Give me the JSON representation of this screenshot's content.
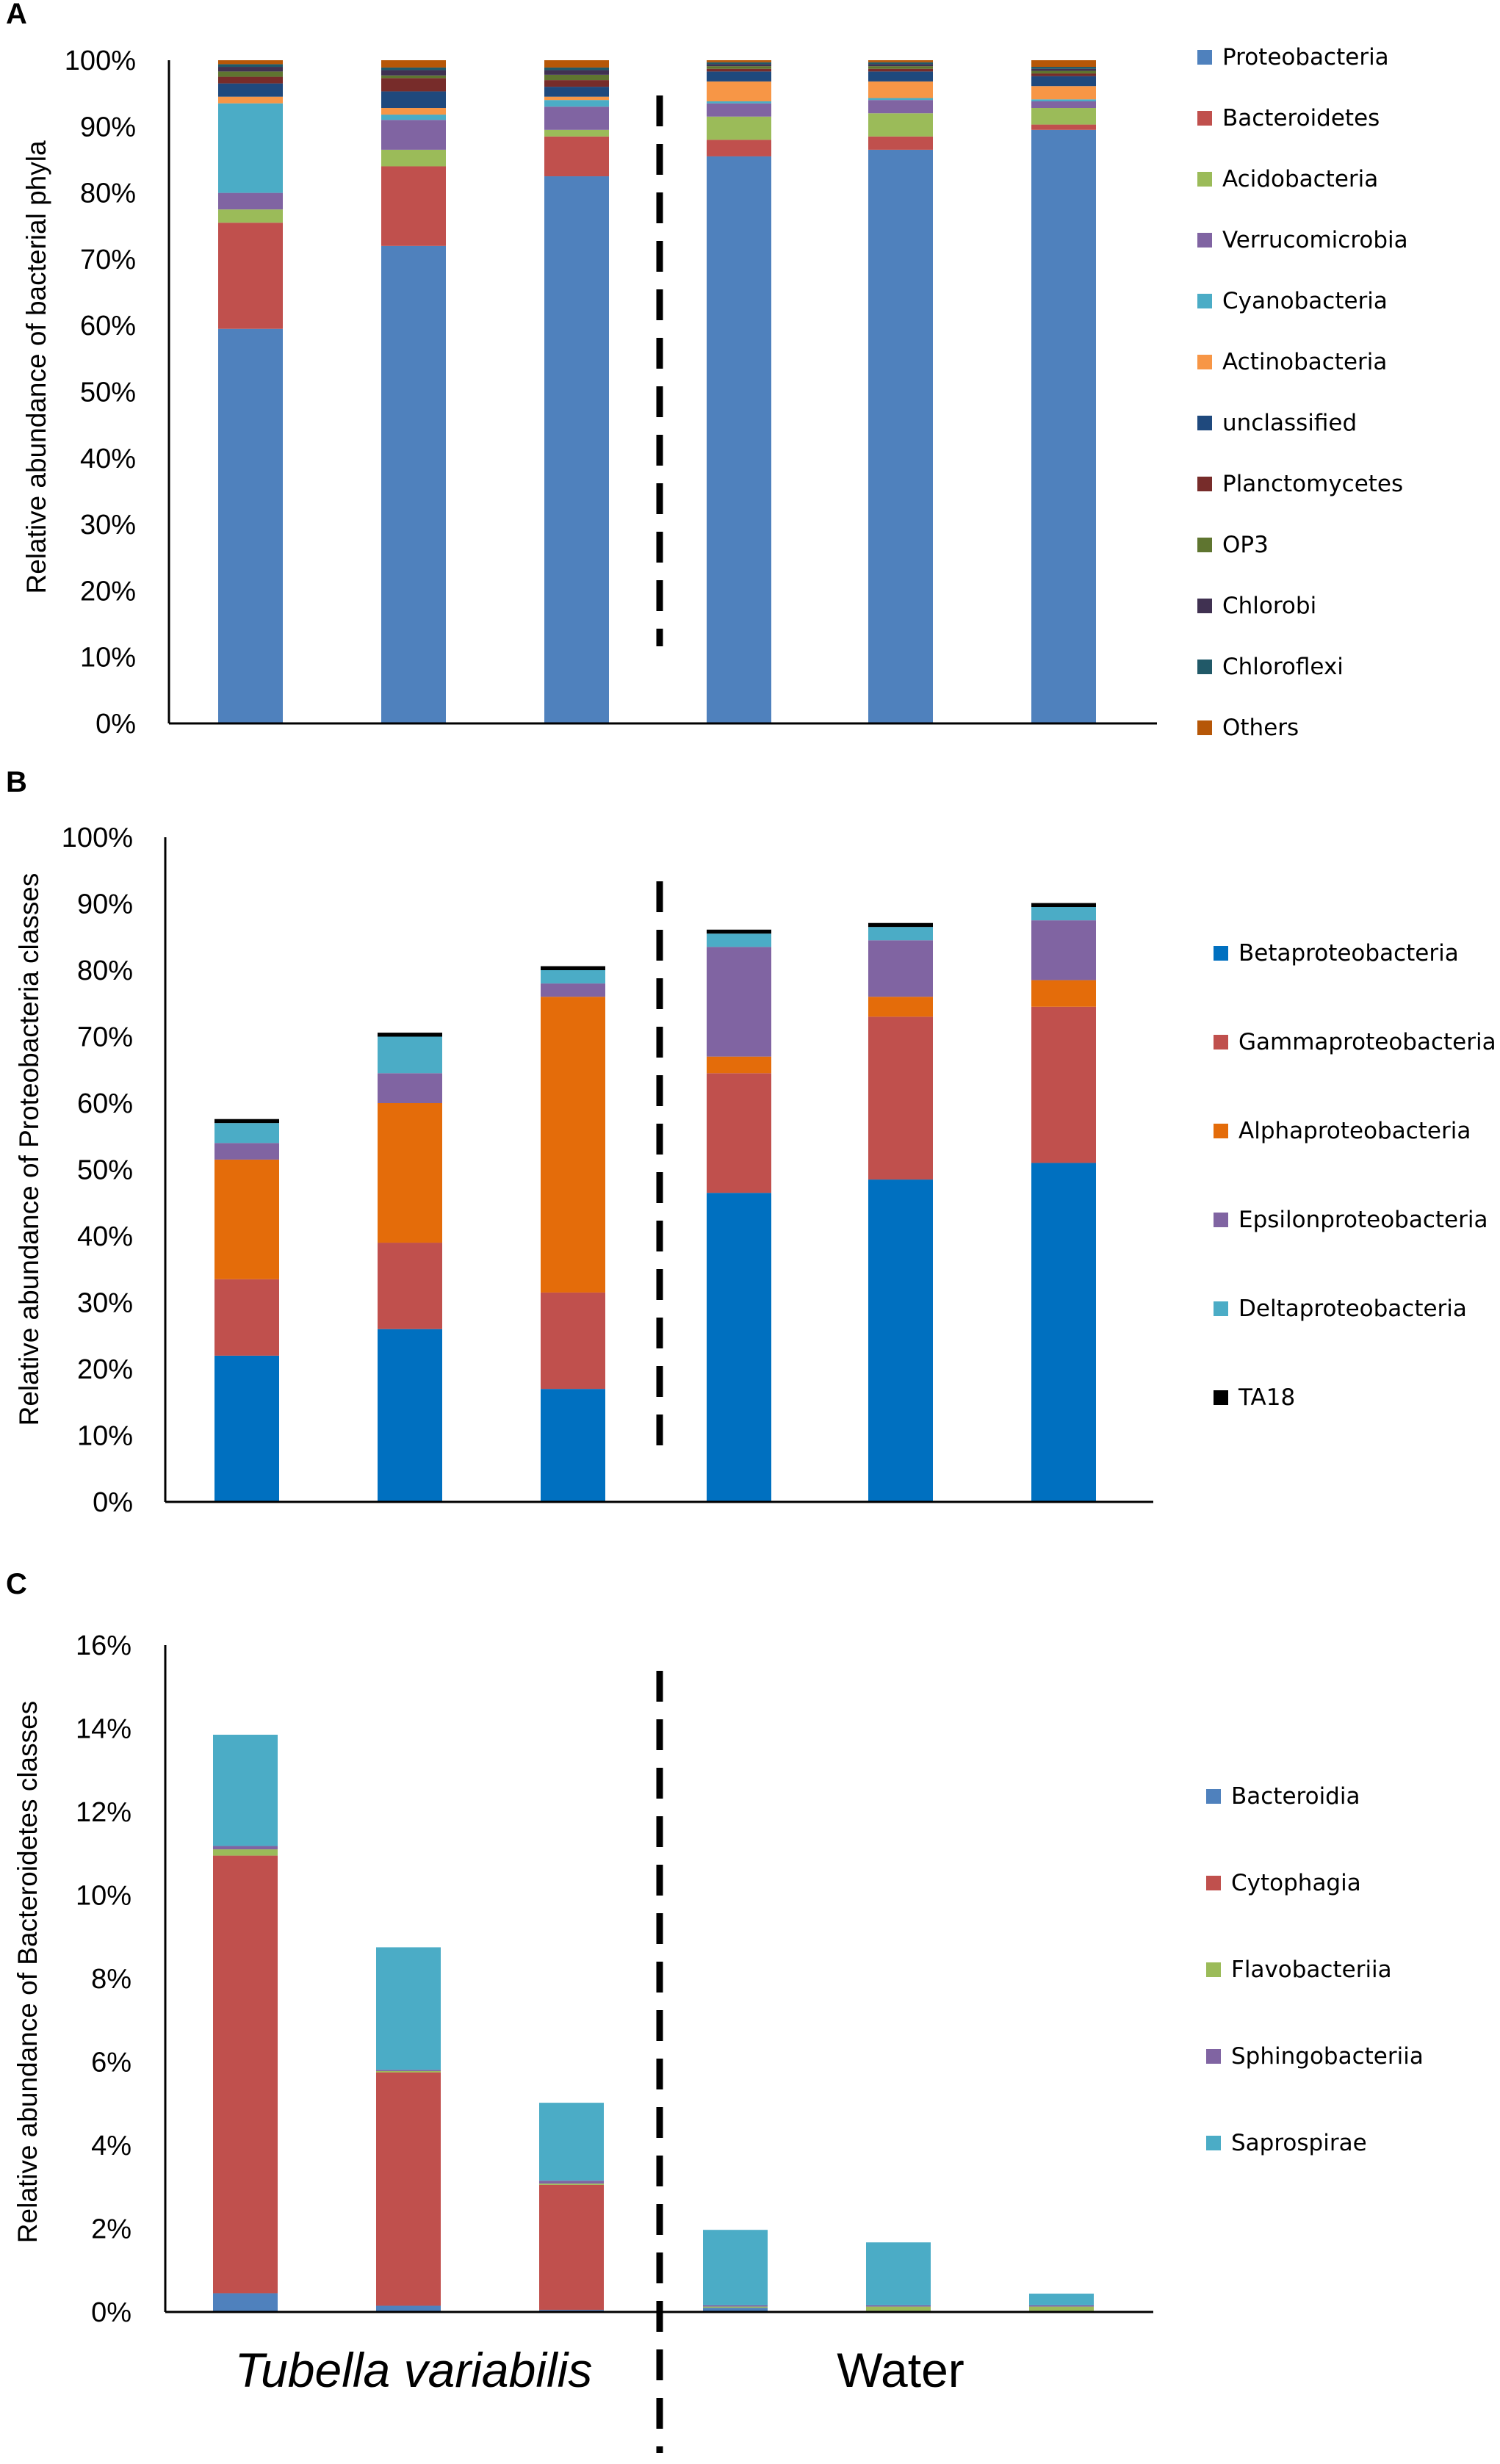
{
  "chart_data": [
    {
      "panel": "A",
      "type": "bar",
      "stacked": true,
      "title": "",
      "xlabel": "",
      "ylabel": "Relative abundance of bacterial phyla",
      "ylim": [
        0,
        1
      ],
      "yticks": [
        "0%",
        "10%",
        "20%",
        "30%",
        "40%",
        "50%",
        "60%",
        "70%",
        "80%",
        "90%",
        "100%"
      ],
      "legend_position": "right",
      "series": [
        {
          "name": "Proteobacteria",
          "color": "#4F81BD",
          "values": [
            0.595,
            0.72,
            0.825,
            0.855,
            0.865,
            0.895
          ]
        },
        {
          "name": "Bacteroidetes",
          "color": "#C0504D",
          "values": [
            0.16,
            0.12,
            0.06,
            0.025,
            0.02,
            0.008
          ]
        },
        {
          "name": "Acidobacteria",
          "color": "#9BBB59",
          "values": [
            0.02,
            0.025,
            0.01,
            0.035,
            0.035,
            0.025
          ]
        },
        {
          "name": "Verrucomicrobia",
          "color": "#8064A2",
          "values": [
            0.025,
            0.045,
            0.035,
            0.02,
            0.02,
            0.01
          ]
        },
        {
          "name": "Cyanobacteria",
          "color": "#4BACC6",
          "values": [
            0.135,
            0.008,
            0.01,
            0.003,
            0.003,
            0.003
          ]
        },
        {
          "name": "Actinobacteria",
          "color": "#F79646",
          "values": [
            0.01,
            0.01,
            0.005,
            0.03,
            0.025,
            0.02
          ]
        },
        {
          "name": "unclassified",
          "color": "#1F497D",
          "values": [
            0.02,
            0.025,
            0.015,
            0.015,
            0.015,
            0.015
          ]
        },
        {
          "name": "Planctomycetes",
          "color": "#772C2A",
          "values": [
            0.01,
            0.02,
            0.01,
            0.004,
            0.004,
            0.004
          ]
        },
        {
          "name": "OP3",
          "color": "#5F7530",
          "values": [
            0.008,
            0.004,
            0.008,
            0.004,
            0.004,
            0.004
          ]
        },
        {
          "name": "Chlorobi",
          "color": "#403151",
          "values": [
            0.007,
            0.008,
            0.007,
            0.003,
            0.003,
            0.003
          ]
        },
        {
          "name": "Chloroflexi",
          "color": "#215968",
          "values": [
            0.004,
            0.004,
            0.004,
            0.003,
            0.003,
            0.003
          ]
        },
        {
          "name": "Others",
          "color": "#B65708",
          "values": [
            0.006,
            0.011,
            0.011,
            0.003,
            0.003,
            0.01
          ]
        }
      ]
    },
    {
      "panel": "B",
      "type": "bar",
      "stacked": true,
      "title": "",
      "xlabel": "",
      "ylabel": "Relative abundance of Proteobacteria classes",
      "ylim": [
        0,
        1
      ],
      "yticks": [
        "0%",
        "10%",
        "20%",
        "30%",
        "40%",
        "50%",
        "60%",
        "70%",
        "80%",
        "90%",
        "100%"
      ],
      "legend_position": "right",
      "series": [
        {
          "name": "Betaproteobacteria",
          "color": "#0070C0",
          "values": [
            0.22,
            0.26,
            0.17,
            0.465,
            0.485,
            0.51
          ]
        },
        {
          "name": "Gammaproteobacteria",
          "color": "#C0504D",
          "values": [
            0.115,
            0.13,
            0.145,
            0.18,
            0.245,
            0.235
          ]
        },
        {
          "name": "Alphaproteobacteria",
          "color": "#E46C0A",
          "values": [
            0.18,
            0.21,
            0.445,
            0.025,
            0.03,
            0.04
          ]
        },
        {
          "name": "Epsilonproteobacteria",
          "color": "#8064A2",
          "values": [
            0.025,
            0.045,
            0.02,
            0.165,
            0.085,
            0.09
          ]
        },
        {
          "name": "Deltaproteobacteria",
          "color": "#4BACC6",
          "values": [
            0.03,
            0.055,
            0.02,
            0.02,
            0.02,
            0.02
          ]
        },
        {
          "name": "TA18",
          "color": "#000000",
          "values": [
            0.006,
            0.006,
            0.006,
            0.006,
            0.006,
            0.006
          ]
        }
      ]
    },
    {
      "panel": "C",
      "type": "bar",
      "stacked": true,
      "title": "",
      "xlabel": "",
      "ylabel": "Relative abundance of Bacteroidetes classes",
      "ylim": [
        0,
        0.16
      ],
      "yticks": [
        "0%",
        "2%",
        "4%",
        "6%",
        "8%",
        "10%",
        "12%",
        "14%",
        "16%"
      ],
      "legend_position": "right",
      "series": [
        {
          "name": "Bacteroidia",
          "color": "#4F81BD",
          "values": [
            0.0045,
            0.0015,
            0.0005,
            0.001,
            0.0003,
            0.0003
          ]
        },
        {
          "name": "Cytophagia",
          "color": "#C0504D",
          "values": [
            0.105,
            0.056,
            0.03,
            0.0,
            0.0,
            0.0
          ]
        },
        {
          "name": "Flavobacteriia",
          "color": "#9BBB59",
          "values": [
            0.0015,
            0.0003,
            0.0003,
            0.0003,
            0.001,
            0.001
          ]
        },
        {
          "name": "Sphingobacteriia",
          "color": "#8064A2",
          "values": [
            0.0008,
            0.0003,
            0.0007,
            0.0003,
            0.0003,
            0.0003
          ]
        },
        {
          "name": "Saprospirae",
          "color": "#4BACC6",
          "values": [
            0.0267,
            0.0294,
            0.0187,
            0.0181,
            0.0151,
            0.0028
          ]
        }
      ]
    }
  ],
  "group_labels": {
    "left": "Tubella variabilis",
    "right": "Water"
  }
}
